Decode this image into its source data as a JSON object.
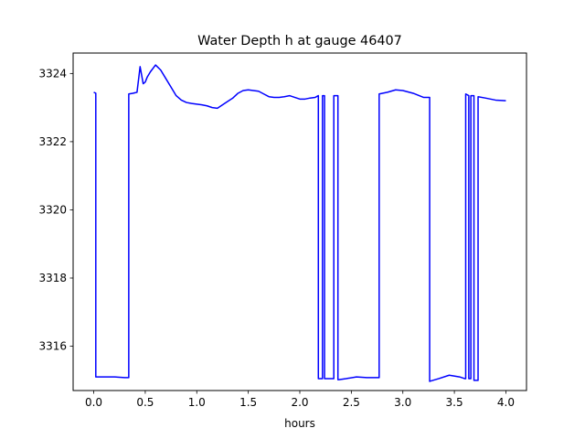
{
  "chart_data": {
    "type": "line",
    "title": "Water Depth h at gauge 46407",
    "xlabel": "hours",
    "ylabel": "",
    "xlim": [
      -0.2,
      4.2
    ],
    "ylim": [
      3314.7,
      3324.6
    ],
    "xticks": [
      0.0,
      0.5,
      1.0,
      1.5,
      2.0,
      2.5,
      3.0,
      3.5,
      4.0
    ],
    "xtick_labels": [
      "0.0",
      "0.5",
      "1.0",
      "1.5",
      "2.0",
      "2.5",
      "3.0",
      "3.5",
      "4.0"
    ],
    "yticks": [
      3316,
      3318,
      3320,
      3322,
      3324
    ],
    "ytick_labels": [
      "3316",
      "3318",
      "3320",
      "3322",
      "3324"
    ],
    "grid": false,
    "series": [
      {
        "color": "#0000ff",
        "x": [
          0.0,
          0.02,
          0.02,
          0.1,
          0.2,
          0.3,
          0.34,
          0.34,
          0.38,
          0.42,
          0.45,
          0.48,
          0.5,
          0.52,
          0.55,
          0.6,
          0.65,
          0.7,
          0.75,
          0.8,
          0.85,
          0.9,
          0.95,
          1.0,
          1.05,
          1.1,
          1.15,
          1.2,
          1.25,
          1.3,
          1.35,
          1.4,
          1.45,
          1.5,
          1.55,
          1.6,
          1.65,
          1.7,
          1.75,
          1.8,
          1.85,
          1.9,
          1.95,
          2.0,
          2.05,
          2.1,
          2.15,
          2.18,
          2.18,
          2.22,
          2.22,
          2.24,
          2.24,
          2.33,
          2.33,
          2.37,
          2.37,
          2.38,
          2.38,
          2.45,
          2.55,
          2.65,
          2.75,
          2.77,
          2.77,
          2.85,
          2.93,
          3.0,
          3.1,
          3.2,
          3.26,
          3.26,
          3.35,
          3.45,
          3.55,
          3.6,
          3.61,
          3.61,
          3.64,
          3.64,
          3.66,
          3.66,
          3.69,
          3.69,
          3.73,
          3.73,
          3.8,
          3.9,
          4.0
        ],
        "y": [
          3323.45,
          3323.42,
          3315.1,
          3315.1,
          3315.1,
          3315.08,
          3315.08,
          3323.4,
          3323.42,
          3323.45,
          3324.2,
          3323.7,
          3323.75,
          3323.9,
          3324.05,
          3324.25,
          3324.1,
          3323.85,
          3323.6,
          3323.35,
          3323.22,
          3323.15,
          3323.12,
          3323.1,
          3323.08,
          3323.05,
          3323.0,
          3322.98,
          3323.08,
          3323.18,
          3323.28,
          3323.42,
          3323.5,
          3323.52,
          3323.5,
          3323.48,
          3323.4,
          3323.32,
          3323.3,
          3323.3,
          3323.32,
          3323.35,
          3323.3,
          3323.25,
          3323.25,
          3323.28,
          3323.3,
          3323.35,
          3315.05,
          3315.05,
          3323.35,
          3323.35,
          3315.05,
          3315.05,
          3323.35,
          3323.35,
          3315.02,
          3315.02,
          3315.02,
          3315.05,
          3315.1,
          3315.08,
          3315.08,
          3315.08,
          3323.4,
          3323.45,
          3323.52,
          3323.5,
          3323.42,
          3323.3,
          3323.3,
          3314.97,
          3315.05,
          3315.15,
          3315.1,
          3315.05,
          3315.05,
          3323.4,
          3323.35,
          3315.05,
          3315.05,
          3323.35,
          3323.35,
          3315.0,
          3315.0,
          3323.32,
          3323.28,
          3323.22,
          3323.2
        ]
      }
    ]
  }
}
